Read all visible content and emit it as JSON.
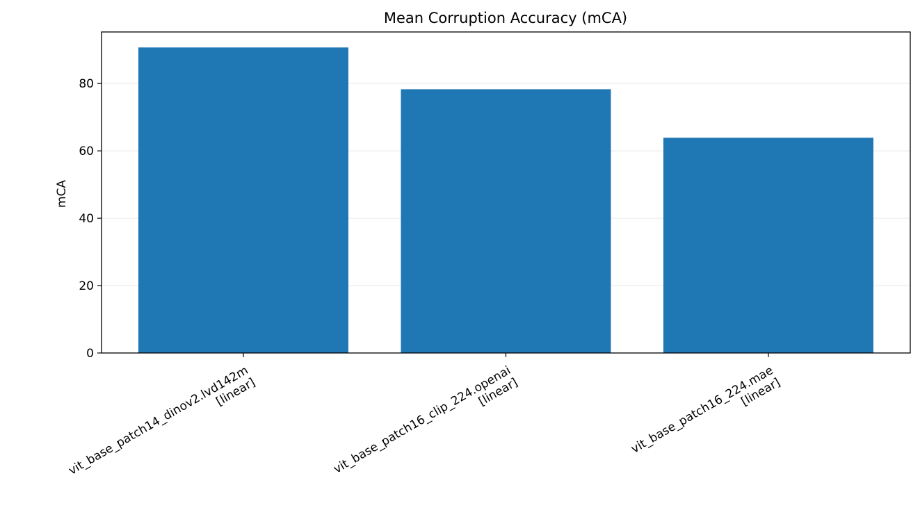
{
  "chart_data": {
    "type": "bar",
    "title": "Mean Corruption Accuracy (mCA)",
    "xlabel": "",
    "ylabel": "mCA",
    "ylim": [
      0,
      95.3
    ],
    "yticks": [
      0,
      20,
      40,
      60,
      80
    ],
    "grid": "y",
    "bar_color": "#1f77b4",
    "categories": [
      [
        "vit_base_patch14_dinov2.lvd142m",
        "[linear]"
      ],
      [
        "vit_base_patch16_clip_224.openai",
        "[linear]"
      ],
      [
        "vit_base_patch16_224.mae",
        "[linear]"
      ]
    ],
    "values": [
      90.7,
      78.3,
      63.9
    ]
  }
}
